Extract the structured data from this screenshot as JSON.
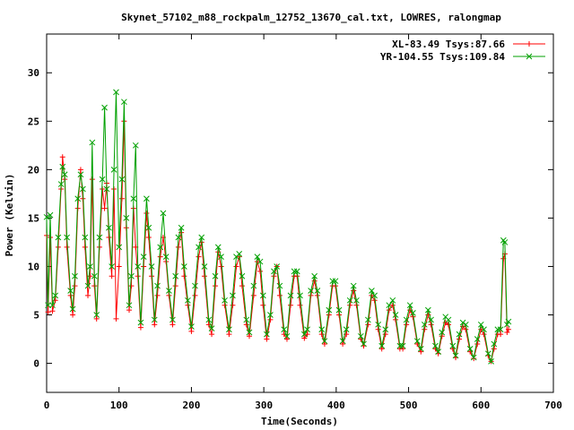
{
  "chart_data": {
    "type": "line",
    "title": "Skynet_57102_m88_rockpalm_12752_13670_cal.txt, LOWRES, ralongmap",
    "xlabel": "Time(Seconds)",
    "ylabel": "Power (Kelvin)",
    "xlim": [
      0,
      700
    ],
    "ylim": [
      -3,
      34
    ],
    "xticks": [
      0,
      100,
      200,
      300,
      400,
      500,
      600,
      700
    ],
    "yticks": [
      0,
      5,
      10,
      15,
      20,
      25,
      30
    ],
    "legend": "top-right",
    "grid": false,
    "series": [
      {
        "name": "XL-83.49 Tsys:87.66",
        "color": "#ff0000",
        "marker": "plus",
        "points": [
          [
            0,
            13.2
          ],
          [
            2,
            5.3
          ],
          [
            5,
            13
          ],
          [
            8,
            5.4
          ],
          [
            12,
            6.5
          ],
          [
            16,
            12
          ],
          [
            20,
            18
          ],
          [
            22,
            21.3
          ],
          [
            25,
            19
          ],
          [
            28,
            12
          ],
          [
            33,
            7
          ],
          [
            36,
            5
          ],
          [
            39,
            8
          ],
          [
            43,
            16
          ],
          [
            47,
            20
          ],
          [
            50,
            17
          ],
          [
            53,
            12
          ],
          [
            57,
            7
          ],
          [
            60,
            9
          ],
          [
            63,
            19
          ],
          [
            66,
            8
          ],
          [
            69,
            4.6
          ],
          [
            73,
            12
          ],
          [
            77,
            18
          ],
          [
            80,
            16
          ],
          [
            83,
            18.6
          ],
          [
            86,
            13
          ],
          [
            90,
            9
          ],
          [
            93,
            18
          ],
          [
            96,
            4.6
          ],
          [
            100,
            10
          ],
          [
            104,
            17
          ],
          [
            107,
            25
          ],
          [
            110,
            14
          ],
          [
            114,
            5.5
          ],
          [
            117,
            8
          ],
          [
            120,
            16
          ],
          [
            123,
            12
          ],
          [
            126,
            9
          ],
          [
            130,
            3.7
          ],
          [
            134,
            10
          ],
          [
            138,
            15.5
          ],
          [
            141,
            13
          ],
          [
            145,
            9
          ],
          [
            149,
            4
          ],
          [
            153,
            7
          ],
          [
            157,
            11
          ],
          [
            161,
            13
          ],
          [
            165,
            10.5
          ],
          [
            169,
            7
          ],
          [
            174,
            4
          ],
          [
            178,
            8
          ],
          [
            182,
            12
          ],
          [
            186,
            13.5
          ],
          [
            190,
            9
          ],
          [
            195,
            6
          ],
          [
            200,
            3.3
          ],
          [
            205,
            7
          ],
          [
            210,
            11
          ],
          [
            214,
            12.5
          ],
          [
            218,
            9
          ],
          [
            224,
            4
          ],
          [
            228,
            3
          ],
          [
            233,
            8
          ],
          [
            237,
            11.5
          ],
          [
            241,
            10
          ],
          [
            246,
            6
          ],
          [
            252,
            3
          ],
          [
            257,
            6
          ],
          [
            262,
            10
          ],
          [
            266,
            11
          ],
          [
            270,
            8
          ],
          [
            276,
            4
          ],
          [
            280,
            2.8
          ],
          [
            286,
            7
          ],
          [
            291,
            10.5
          ],
          [
            295,
            9.5
          ],
          [
            299,
            6
          ],
          [
            304,
            2.5
          ],
          [
            309,
            4.5
          ],
          [
            314,
            9
          ],
          [
            318,
            10
          ],
          [
            322,
            7
          ],
          [
            328,
            3
          ],
          [
            332,
            2.5
          ],
          [
            337,
            6
          ],
          [
            342,
            9
          ],
          [
            346,
            9
          ],
          [
            350,
            6
          ],
          [
            356,
            2.6
          ],
          [
            360,
            3
          ],
          [
            365,
            7
          ],
          [
            370,
            8.5
          ],
          [
            374,
            7
          ],
          [
            380,
            3
          ],
          [
            384,
            2
          ],
          [
            390,
            5
          ],
          [
            395,
            8
          ],
          [
            399,
            8
          ],
          [
            404,
            5
          ],
          [
            409,
            2
          ],
          [
            414,
            3
          ],
          [
            419,
            6
          ],
          [
            424,
            7.5
          ],
          [
            428,
            6
          ],
          [
            434,
            2.5
          ],
          [
            438,
            1.8
          ],
          [
            444,
            4
          ],
          [
            449,
            7
          ],
          [
            453,
            6.5
          ],
          [
            458,
            3.5
          ],
          [
            463,
            1.5
          ],
          [
            468,
            3
          ],
          [
            473,
            5.5
          ],
          [
            478,
            6
          ],
          [
            482,
            4.5
          ],
          [
            488,
            1.5
          ],
          [
            492,
            1.5
          ],
          [
            497,
            4
          ],
          [
            502,
            5.5
          ],
          [
            506,
            4.8
          ],
          [
            512,
            2
          ],
          [
            517,
            1.2
          ],
          [
            522,
            3.5
          ],
          [
            527,
            5
          ],
          [
            531,
            4
          ],
          [
            537,
            1.5
          ],
          [
            541,
            1
          ],
          [
            546,
            2.8
          ],
          [
            551,
            4.2
          ],
          [
            555,
            4
          ],
          [
            561,
            1.5
          ],
          [
            565,
            0.6
          ],
          [
            570,
            2.5
          ],
          [
            575,
            3.8
          ],
          [
            579,
            3.5
          ],
          [
            585,
            1.2
          ],
          [
            590,
            0.5
          ],
          [
            595,
            2
          ],
          [
            600,
            3.5
          ],
          [
            604,
            3
          ],
          [
            610,
            0.8
          ],
          [
            614,
            0.2
          ],
          [
            618,
            1.5
          ],
          [
            623,
            3
          ],
          [
            627,
            3
          ],
          [
            631,
            10.8
          ],
          [
            633,
            11.3
          ],
          [
            636,
            3.2
          ],
          [
            638,
            3.5
          ]
        ]
      },
      {
        "name": "YR-104.55 Tsys:109.84",
        "color": "#00a000",
        "marker": "x",
        "points": [
          [
            0,
            15.1
          ],
          [
            2,
            6
          ],
          [
            5,
            15.3
          ],
          [
            8,
            6
          ],
          [
            12,
            7
          ],
          [
            16,
            13
          ],
          [
            20,
            18.5
          ],
          [
            22,
            20.3
          ],
          [
            25,
            19.5
          ],
          [
            28,
            13
          ],
          [
            33,
            7.5
          ],
          [
            36,
            5.6
          ],
          [
            39,
            9
          ],
          [
            43,
            17
          ],
          [
            47,
            19.5
          ],
          [
            50,
            18
          ],
          [
            53,
            13
          ],
          [
            57,
            8
          ],
          [
            60,
            10
          ],
          [
            63,
            22.8
          ],
          [
            66,
            9
          ],
          [
            69,
            5
          ],
          [
            73,
            13
          ],
          [
            77,
            19
          ],
          [
            80,
            26.4
          ],
          [
            83,
            18
          ],
          [
            86,
            14
          ],
          [
            90,
            10
          ],
          [
            93,
            20
          ],
          [
            96,
            28
          ],
          [
            100,
            12
          ],
          [
            104,
            19
          ],
          [
            107,
            27
          ],
          [
            110,
            15
          ],
          [
            114,
            6
          ],
          [
            117,
            9
          ],
          [
            120,
            17
          ],
          [
            123,
            22.5
          ],
          [
            126,
            10
          ],
          [
            130,
            4.2
          ],
          [
            134,
            11
          ],
          [
            138,
            17
          ],
          [
            141,
            14
          ],
          [
            145,
            10
          ],
          [
            149,
            4.5
          ],
          [
            153,
            8
          ],
          [
            157,
            12
          ],
          [
            161,
            15.5
          ],
          [
            165,
            11
          ],
          [
            169,
            7.5
          ],
          [
            174,
            4.5
          ],
          [
            178,
            9
          ],
          [
            182,
            13
          ],
          [
            186,
            14
          ],
          [
            190,
            10
          ],
          [
            195,
            6.5
          ],
          [
            200,
            3.8
          ],
          [
            205,
            8
          ],
          [
            210,
            12
          ],
          [
            214,
            13
          ],
          [
            218,
            10
          ],
          [
            224,
            4.5
          ],
          [
            228,
            3.6
          ],
          [
            233,
            9
          ],
          [
            237,
            12
          ],
          [
            241,
            11
          ],
          [
            246,
            6.5
          ],
          [
            252,
            3.5
          ],
          [
            257,
            7
          ],
          [
            262,
            11
          ],
          [
            266,
            11.3
          ],
          [
            270,
            9
          ],
          [
            276,
            4.5
          ],
          [
            280,
            3.2
          ],
          [
            286,
            8
          ],
          [
            291,
            11
          ],
          [
            295,
            10.5
          ],
          [
            299,
            7
          ],
          [
            304,
            3
          ],
          [
            309,
            5
          ],
          [
            314,
            9.5
          ],
          [
            318,
            10
          ],
          [
            322,
            8
          ],
          [
            328,
            3.5
          ],
          [
            332,
            2.8
          ],
          [
            337,
            7
          ],
          [
            342,
            9.5
          ],
          [
            346,
            9.5
          ],
          [
            350,
            7
          ],
          [
            356,
            3
          ],
          [
            360,
            3.5
          ],
          [
            365,
            7.5
          ],
          [
            370,
            9
          ],
          [
            374,
            7.5
          ],
          [
            380,
            3.5
          ],
          [
            384,
            2.3
          ],
          [
            390,
            5.5
          ],
          [
            395,
            8.5
          ],
          [
            399,
            8.5
          ],
          [
            404,
            5.5
          ],
          [
            409,
            2.3
          ],
          [
            414,
            3.5
          ],
          [
            419,
            6.5
          ],
          [
            424,
            8
          ],
          [
            428,
            6.5
          ],
          [
            434,
            2.8
          ],
          [
            438,
            2
          ],
          [
            444,
            4.5
          ],
          [
            449,
            7.5
          ],
          [
            453,
            7
          ],
          [
            458,
            4
          ],
          [
            463,
            1.8
          ],
          [
            468,
            3.5
          ],
          [
            473,
            6
          ],
          [
            478,
            6.5
          ],
          [
            482,
            5
          ],
          [
            488,
            1.8
          ],
          [
            492,
            1.8
          ],
          [
            497,
            4.5
          ],
          [
            502,
            6
          ],
          [
            506,
            5.2
          ],
          [
            512,
            2.3
          ],
          [
            517,
            1.5
          ],
          [
            522,
            4
          ],
          [
            527,
            5.5
          ],
          [
            531,
            4.5
          ],
          [
            537,
            1.8
          ],
          [
            541,
            1.2
          ],
          [
            546,
            3.2
          ],
          [
            551,
            4.8
          ],
          [
            555,
            4.5
          ],
          [
            561,
            1.8
          ],
          [
            565,
            0.8
          ],
          [
            570,
            3
          ],
          [
            575,
            4.2
          ],
          [
            579,
            4
          ],
          [
            585,
            1.5
          ],
          [
            590,
            0.6
          ],
          [
            595,
            2.5
          ],
          [
            600,
            4
          ],
          [
            604,
            3.5
          ],
          [
            610,
            1
          ],
          [
            614,
            0.2
          ],
          [
            618,
            2
          ],
          [
            623,
            3.5
          ],
          [
            627,
            3.5
          ],
          [
            631,
            12.7
          ],
          [
            633,
            12.5
          ],
          [
            636,
            4
          ],
          [
            638,
            4.3
          ]
        ]
      }
    ]
  }
}
